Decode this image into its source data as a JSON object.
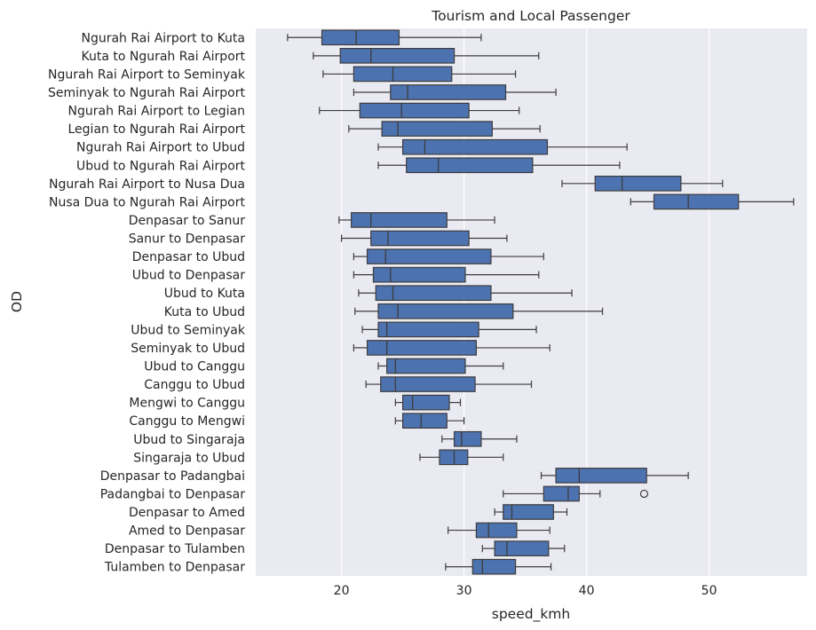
{
  "chart_data": {
    "type": "box",
    "orientation": "horizontal",
    "title": "Tourism and Local Passenger",
    "xlabel": "speed_kmh",
    "ylabel": "OD",
    "xlim": [
      13,
      58
    ],
    "xticks": [
      20,
      30,
      40,
      50
    ],
    "grid": true,
    "colors": {
      "box_fill": "#4c72b0",
      "line": "#3d3d3d",
      "background": "#eaeaf2",
      "grid": "#ffffff",
      "text": "#262626"
    },
    "boxes": [
      {
        "label": "Ngurah Rai Airport to Kuta",
        "whislo": 15.6,
        "q1": 18.4,
        "med": 21.2,
        "q3": 24.7,
        "whishi": 31.4,
        "fliers": []
      },
      {
        "label": "Kuta to Ngurah Rai Airport",
        "whislo": 17.7,
        "q1": 19.9,
        "med": 22.4,
        "q3": 29.2,
        "whishi": 36.1,
        "fliers": []
      },
      {
        "label": "Ngurah Rai Airport to Seminyak",
        "whislo": 18.5,
        "q1": 21.0,
        "med": 24.2,
        "q3": 29.0,
        "whishi": 34.2,
        "fliers": []
      },
      {
        "label": "Seminyak to Ngurah Rai Airport",
        "whislo": 21.0,
        "q1": 24.0,
        "med": 25.4,
        "q3": 33.4,
        "whishi": 37.5,
        "fliers": []
      },
      {
        "label": "Ngurah Rai Airport to Legian",
        "whislo": 18.2,
        "q1": 21.5,
        "med": 24.9,
        "q3": 30.4,
        "whishi": 34.5,
        "fliers": []
      },
      {
        "label": "Legian to Ngurah Rai Airport",
        "whislo": 20.6,
        "q1": 23.3,
        "med": 24.6,
        "q3": 32.3,
        "whishi": 36.2,
        "fliers": []
      },
      {
        "label": "Ngurah Rai Airport to Ubud",
        "whislo": 23.0,
        "q1": 25.0,
        "med": 26.8,
        "q3": 36.8,
        "whishi": 43.3,
        "fliers": []
      },
      {
        "label": "Ubud to Ngurah Rai Airport",
        "whislo": 23.0,
        "q1": 25.3,
        "med": 27.9,
        "q3": 35.6,
        "whishi": 42.7,
        "fliers": []
      },
      {
        "label": "Ngurah Rai Airport to Nusa Dua",
        "whislo": 38.0,
        "q1": 40.7,
        "med": 42.9,
        "q3": 47.7,
        "whishi": 51.1,
        "fliers": []
      },
      {
        "label": "Nusa Dua to Ngurah Rai Airport",
        "whislo": 43.6,
        "q1": 45.5,
        "med": 48.3,
        "q3": 52.4,
        "whishi": 56.9,
        "fliers": []
      },
      {
        "label": "Denpasar to Sanur",
        "whislo": 19.8,
        "q1": 20.8,
        "med": 22.4,
        "q3": 28.6,
        "whishi": 32.5,
        "fliers": []
      },
      {
        "label": "Sanur to Denpasar",
        "whislo": 20.0,
        "q1": 22.4,
        "med": 23.8,
        "q3": 30.4,
        "whishi": 33.5,
        "fliers": []
      },
      {
        "label": "Denpasar to Ubud",
        "whislo": 21.0,
        "q1": 22.1,
        "med": 23.6,
        "q3": 32.2,
        "whishi": 36.5,
        "fliers": []
      },
      {
        "label": "Ubud to Denpasar",
        "whislo": 21.0,
        "q1": 22.6,
        "med": 24.0,
        "q3": 30.1,
        "whishi": 36.1,
        "fliers": []
      },
      {
        "label": "Ubud to Kuta",
        "whislo": 21.4,
        "q1": 22.8,
        "med": 24.2,
        "q3": 32.2,
        "whishi": 38.8,
        "fliers": []
      },
      {
        "label": "Kuta to Ubud",
        "whislo": 21.1,
        "q1": 23.0,
        "med": 24.6,
        "q3": 34.0,
        "whishi": 41.3,
        "fliers": []
      },
      {
        "label": "Ubud to Seminyak",
        "whislo": 21.7,
        "q1": 23.0,
        "med": 23.7,
        "q3": 31.2,
        "whishi": 35.9,
        "fliers": []
      },
      {
        "label": "Seminyak to Ubud",
        "whislo": 21.0,
        "q1": 22.1,
        "med": 23.7,
        "q3": 31.0,
        "whishi": 37.0,
        "fliers": []
      },
      {
        "label": "Ubud to Canggu",
        "whislo": 23.0,
        "q1": 23.7,
        "med": 24.4,
        "q3": 30.1,
        "whishi": 33.2,
        "fliers": []
      },
      {
        "label": "Canggu to Ubud",
        "whislo": 22.0,
        "q1": 23.2,
        "med": 24.4,
        "q3": 30.9,
        "whishi": 35.5,
        "fliers": []
      },
      {
        "label": "Mengwi to Canggu",
        "whislo": 24.4,
        "q1": 25.0,
        "med": 25.8,
        "q3": 28.8,
        "whishi": 29.7,
        "fliers": []
      },
      {
        "label": "Canggu to Mengwi",
        "whislo": 24.4,
        "q1": 25.0,
        "med": 26.5,
        "q3": 28.6,
        "whishi": 30.0,
        "fliers": []
      },
      {
        "label": "Ubud to Singaraja",
        "whislo": 28.2,
        "q1": 29.2,
        "med": 29.8,
        "q3": 31.4,
        "whishi": 34.3,
        "fliers": []
      },
      {
        "label": "Singaraja to Ubud",
        "whislo": 26.4,
        "q1": 28.0,
        "med": 29.2,
        "q3": 30.3,
        "whishi": 33.2,
        "fliers": []
      },
      {
        "label": "Denpasar to Padangbai",
        "whislo": 36.3,
        "q1": 37.5,
        "med": 39.4,
        "q3": 44.9,
        "whishi": 48.3,
        "fliers": []
      },
      {
        "label": "Padangbai to Denpasar",
        "whislo": 33.2,
        "q1": 36.5,
        "med": 38.5,
        "q3": 39.4,
        "whishi": 41.1,
        "fliers": [
          44.7
        ]
      },
      {
        "label": "Denpasar to Amed",
        "whislo": 32.5,
        "q1": 33.2,
        "med": 33.9,
        "q3": 37.3,
        "whishi": 38.4,
        "fliers": []
      },
      {
        "label": "Amed to Denpasar",
        "whislo": 28.7,
        "q1": 31.0,
        "med": 32.0,
        "q3": 34.3,
        "whishi": 37.0,
        "fliers": []
      },
      {
        "label": "Denpasar to Tulamben",
        "whislo": 31.5,
        "q1": 32.5,
        "med": 33.5,
        "q3": 36.9,
        "whishi": 38.2,
        "fliers": []
      },
      {
        "label": "Tulamben to Denpasar",
        "whislo": 28.5,
        "q1": 30.7,
        "med": 31.5,
        "q3": 34.2,
        "whishi": 37.1,
        "fliers": []
      }
    ]
  }
}
